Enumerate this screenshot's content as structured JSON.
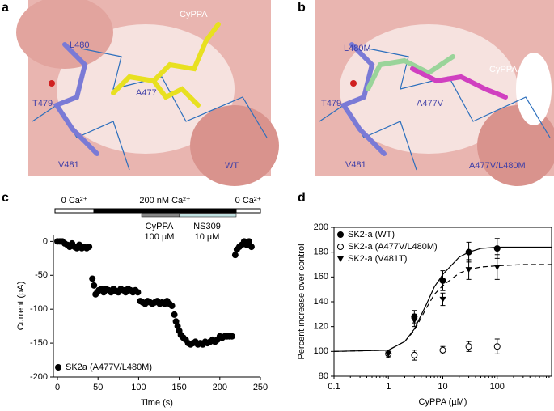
{
  "panels": [
    {
      "label": "a",
      "annotations": [
        "CyPPA",
        "L480",
        "T479",
        "A477",
        "V481",
        "WT"
      ]
    },
    {
      "label": "b",
      "annotations": [
        "L480M",
        "CyPPA",
        "T479",
        "A477V",
        "V481",
        "A477V/L480M"
      ]
    },
    {
      "label": "c"
    },
    {
      "label": "d"
    }
  ],
  "protocol": {
    "ca": [
      "0 Ca²⁺",
      "200 nM Ca²⁺",
      "0 Ca²⁺"
    ],
    "drugs": [
      "CyPPA\n100 µM",
      "NS309\n10 µM"
    ]
  },
  "chart_data": [
    {
      "type": "scatter",
      "xlabel": "Time (s)",
      "ylabel": "Current (pA)",
      "xlim": [
        -5,
        250
      ],
      "ylim": [
        -200,
        10
      ],
      "xticks": [
        0,
        50,
        100,
        150,
        200,
        250
      ],
      "yticks": [
        0,
        -50,
        -100,
        -150,
        -200
      ],
      "legend": "lower left",
      "series": [
        {
          "name": "SK2a (A477V/L480M)",
          "color": "#000000",
          "x": [
            0,
            3,
            6,
            9,
            12,
            15,
            18,
            21,
            24,
            27,
            30,
            33,
            36,
            39,
            43,
            45,
            47,
            49,
            51,
            54,
            57,
            60,
            63,
            66,
            69,
            72,
            75,
            78,
            81,
            84,
            87,
            90,
            93,
            96,
            99,
            102,
            105,
            108,
            111,
            114,
            117,
            120,
            123,
            126,
            129,
            132,
            135,
            138,
            141,
            144,
            146,
            148,
            150,
            152,
            155,
            158,
            161,
            164,
            167,
            170,
            173,
            176,
            179,
            182,
            185,
            188,
            191,
            194,
            197,
            200,
            203,
            206,
            209,
            212,
            215,
            219,
            221,
            224,
            227,
            230,
            233,
            236,
            239
          ],
          "values": [
            0,
            0,
            0,
            -3,
            -5,
            -8,
            -3,
            -8,
            -10,
            -5,
            -10,
            -8,
            -10,
            -8,
            -55,
            -65,
            -78,
            -75,
            -72,
            -70,
            -75,
            -70,
            -72,
            -75,
            -70,
            -73,
            -75,
            -70,
            -72,
            -75,
            -70,
            -72,
            -75,
            -72,
            -75,
            -88,
            -90,
            -92,
            -88,
            -90,
            -92,
            -90,
            -88,
            -92,
            -90,
            -92,
            -88,
            -92,
            -95,
            -108,
            -118,
            -125,
            -132,
            -138,
            -142,
            -145,
            -150,
            -152,
            -150,
            -148,
            -152,
            -150,
            -152,
            -148,
            -150,
            -148,
            -145,
            -148,
            -145,
            -140,
            -142,
            -140,
            -140,
            -140,
            -140,
            -20,
            -12,
            -8,
            -5,
            0,
            -5,
            0,
            -8
          ]
        }
      ]
    },
    {
      "type": "scatter",
      "xlabel": "CyPPA (µM)",
      "ylabel": "Percent increase over control",
      "log_x": true,
      "xlim": [
        0.1,
        1000
      ],
      "ylim": [
        80,
        200
      ],
      "xticks": [
        0.1,
        1,
        10,
        100
      ],
      "yticks": [
        80,
        100,
        120,
        140,
        160,
        180,
        200
      ],
      "legend": "upper left",
      "series": [
        {
          "name": "SK2-a (WT)",
          "color": "#000000",
          "marker": "circle-filled",
          "x": [
            1,
            3,
            10,
            30,
            100
          ],
          "values": [
            98,
            128,
            157,
            180,
            183
          ],
          "errors": [
            3,
            5,
            8,
            8,
            8
          ]
        },
        {
          "name": "SK2-a (A477V/L480M)",
          "color": "#000000",
          "marker": "circle-open",
          "x": [
            1,
            3,
            10,
            30,
            100
          ],
          "values": [
            98,
            97,
            101,
            104,
            104
          ],
          "errors": [
            3,
            4,
            3,
            4,
            6
          ]
        },
        {
          "name": "SK2-a (V481T)",
          "color": "#000000",
          "marker": "triangle-down",
          "x": [
            1,
            3,
            10,
            30,
            100
          ],
          "values": [
            98,
            125,
            142,
            166,
            168
          ],
          "errors": [
            3,
            5,
            5,
            8,
            10
          ]
        }
      ],
      "fits": [
        {
          "style": "solid",
          "x": [
            0.1,
            1,
            2,
            3,
            5,
            7,
            10,
            20,
            30,
            50,
            100,
            300,
            1000
          ],
          "values": [
            100,
            101,
            108,
            118,
            138,
            152,
            162,
            176,
            180,
            183,
            184,
            184,
            184
          ]
        },
        {
          "style": "dashed",
          "x": [
            0.1,
            1,
            2,
            3,
            5,
            7,
            10,
            20,
            30,
            50,
            100,
            300,
            1000
          ],
          "values": [
            100,
            101,
            108,
            117,
            135,
            146,
            153,
            163,
            166,
            168,
            169,
            170,
            170
          ]
        }
      ]
    }
  ]
}
